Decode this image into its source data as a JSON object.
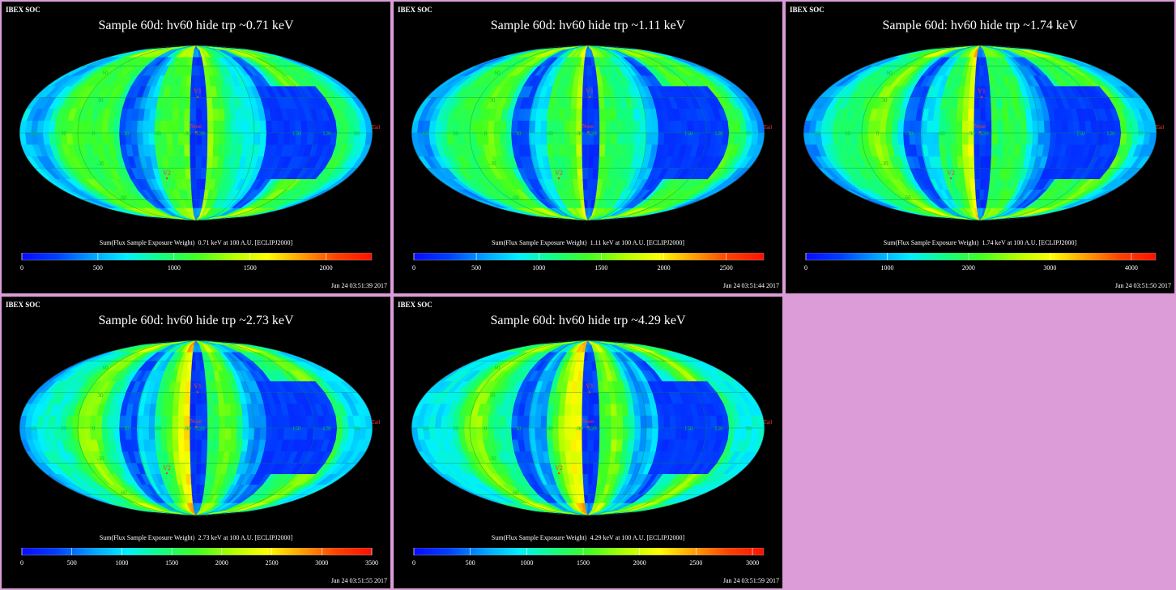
{
  "header": "IBEX SOC",
  "colorbar_label_template": "Sum(Flux Sample Exposure Weight)",
  "colors": {
    "background": "#dc9cd8",
    "panel": "#000000",
    "map_text": "#00cc33",
    "marker_text": "#ff3333",
    "colormap": [
      "#0a0aff",
      "#0040ff",
      "#00a0ff",
      "#00f0ff",
      "#10ff80",
      "#40ff20",
      "#b0ff00",
      "#ffff00",
      "#ffa000",
      "#ff4000",
      "#ff1000"
    ]
  },
  "map_labels": {
    "lat": [
      "60",
      "30",
      "-30",
      "-60"
    ],
    "lon": [
      "60",
      "30",
      "0",
      "-30",
      "-60",
      "-90",
      "-120",
      "150",
      "120",
      "90"
    ],
    "markers": [
      "V1",
      "V2",
      "Nose",
      "Tail"
    ]
  },
  "panels": [
    {
      "title": "Sample 60d: hv60 hide trp ~0.71 keV",
      "energy_label": "0.71 keV at 100 A.U. [ECLIPJ2000]",
      "timestamp": "Jan 24 03:51:39 2017",
      "seed": 1,
      "chart_data": {
        "type": "heatmap",
        "title": "Sample 60d: hv60 hide trp ~0.71 keV",
        "colorbar": {
          "min": 0,
          "max": 2300,
          "ticks": [
            0,
            500,
            1000,
            1500,
            2000
          ]
        }
      }
    },
    {
      "title": "Sample 60d: hv60 hide trp ~1.11 keV",
      "energy_label": "1.11 keV at 100 A.U. [ECLIPJ2000]",
      "timestamp": "Jan 24 03:51:44 2017",
      "seed": 2,
      "chart_data": {
        "type": "heatmap",
        "title": "Sample 60d: hv60 hide trp ~1.11 keV",
        "colorbar": {
          "min": 0,
          "max": 2800,
          "ticks": [
            0,
            500,
            1000,
            1500,
            2000,
            2500
          ]
        }
      }
    },
    {
      "title": "Sample 60d: hv60 hide trp ~1.74 keV",
      "energy_label": "1.74 keV at 100 A.U. [ECLIPJ2000]",
      "timestamp": "Jan 24 03:51:50 2017",
      "seed": 3,
      "chart_data": {
        "type": "heatmap",
        "title": "Sample 60d: hv60 hide trp ~1.74 keV",
        "colorbar": {
          "min": 0,
          "max": 4300,
          "ticks": [
            0,
            1000,
            2000,
            3000,
            4000
          ]
        }
      }
    },
    {
      "title": "Sample 60d: hv60 hide trp ~2.73 keV",
      "energy_label": "2.73 keV at 100 A.U. [ECLIPJ2000]",
      "timestamp": "Jan 24 03:51:55 2017",
      "seed": 4,
      "chart_data": {
        "type": "heatmap",
        "title": "Sample 60d: hv60 hide trp ~2.73 keV",
        "colorbar": {
          "min": 0,
          "max": 3500,
          "ticks": [
            0,
            500,
            1000,
            1500,
            2000,
            2500,
            3000,
            3500
          ]
        }
      }
    },
    {
      "title": "Sample 60d: hv60 hide trp ~4.29 keV",
      "energy_label": "4.29 keV at 100 A.U. [ECLIPJ2000]",
      "timestamp": "Jan 24 03:51:59 2017",
      "seed": 5,
      "chart_data": {
        "type": "heatmap",
        "title": "Sample 60d: hv60 hide trp ~4.29 keV",
        "colorbar": {
          "min": 0,
          "max": 3100,
          "ticks": [
            0,
            500,
            1000,
            1500,
            2000,
            2500,
            3000
          ]
        }
      }
    }
  ]
}
